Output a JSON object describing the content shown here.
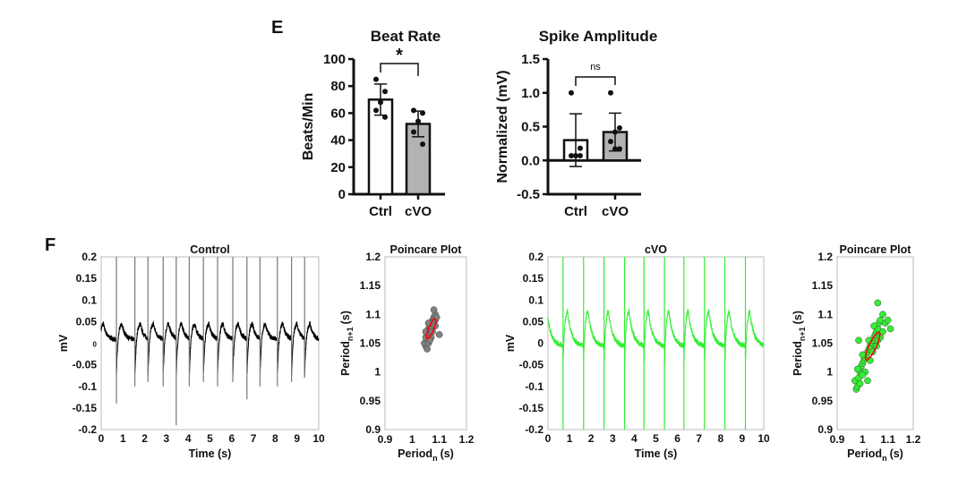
{
  "panels": {
    "e": "E",
    "f": "F"
  },
  "chart_data": [
    {
      "type": "bar",
      "title": "Beat Rate",
      "ylabel": "Beats/Min",
      "categories": [
        "Ctrl",
        "cVO"
      ],
      "values": [
        70,
        52
      ],
      "error_sd": [
        11.5,
        9.5
      ],
      "points": [
        [
          85,
          76,
          68,
          62,
          57
        ],
        [
          62,
          60,
          54,
          46,
          37
        ]
      ],
      "ylim": [
        0,
        100
      ],
      "yticks": [
        "0",
        "20",
        "40",
        "60",
        "80",
        "100"
      ],
      "yticks_values": [
        0,
        20,
        40,
        60,
        80,
        100
      ],
      "significance": "*",
      "bar_colors": [
        "#ffffff",
        "#b3b3b3"
      ]
    },
    {
      "type": "bar",
      "title": "Spike Amplitude",
      "ylabel": "Normalized (mV)",
      "categories": [
        "Ctrl",
        "cVO"
      ],
      "values": [
        0.3,
        0.42
      ],
      "error_sd": [
        0.39,
        0.28
      ],
      "points": [
        [
          1.0,
          0.18,
          0.07,
          0.07,
          0.07
        ],
        [
          1.0,
          0.48,
          0.42,
          0.28,
          0.17,
          0.17
        ]
      ],
      "ylim": [
        -0.5,
        1.5
      ],
      "yticks": [
        "-0.5",
        "0.0",
        "0.5",
        "1.0",
        "1.5"
      ],
      "yticks_values": [
        -0.5,
        0,
        0.5,
        1.0,
        1.5
      ],
      "significance": "ns",
      "bar_colors": [
        "#ffffff",
        "#b3b3b3"
      ]
    },
    {
      "type": "line",
      "title": "Control",
      "xlabel": "Time (s)",
      "ylabel": "mV",
      "xlim": [
        0,
        10
      ],
      "ylim": [
        -0.2,
        0.2
      ],
      "xticks": [
        "0",
        "1",
        "2",
        "3",
        "4",
        "5",
        "6",
        "7",
        "8",
        "9",
        "10"
      ],
      "yticks": [
        "-0.2",
        "-0.15",
        "-0.1",
        "-0.05",
        "0",
        "0.05",
        "0.1",
        "0.15",
        "0.2"
      ],
      "spike_times": [
        0.7,
        1.55,
        2.15,
        2.85,
        3.45,
        4.05,
        4.7,
        5.35,
        6.05,
        6.7,
        7.3,
        8.1,
        8.75,
        9.35
      ],
      "color": "#000000"
    },
    {
      "type": "scatter",
      "title": "Poincare Plot",
      "xlabel": "Period",
      "xlabel_sub": "n",
      "ylabel": "Period",
      "ylabel_sub": "n+1",
      "unit": "(s)",
      "xlim": [
        0.9,
        1.2
      ],
      "ylim": [
        0.9,
        1.2
      ],
      "xticks": [
        "0.9",
        "1",
        "1.1",
        "1.2"
      ],
      "yticks": [
        "0.9",
        "0.95",
        "1",
        "1.05",
        "1.1",
        "1.15",
        "1.2"
      ],
      "points": [
        [
          1.05,
          1.045
        ],
        [
          1.05,
          1.05
        ],
        [
          1.055,
          1.055
        ],
        [
          1.06,
          1.06
        ],
        [
          1.045,
          1.05
        ],
        [
          1.06,
          1.065
        ],
        [
          1.065,
          1.07
        ],
        [
          1.07,
          1.075
        ],
        [
          1.075,
          1.08
        ],
        [
          1.08,
          1.085
        ],
        [
          1.075,
          1.09
        ],
        [
          1.08,
          1.095
        ],
        [
          1.085,
          1.1
        ],
        [
          1.08,
          1.108
        ],
        [
          1.06,
          1.075
        ],
        [
          1.055,
          1.065
        ],
        [
          1.05,
          1.06
        ],
        [
          1.065,
          1.08
        ],
        [
          1.07,
          1.085
        ],
        [
          1.085,
          1.09
        ],
        [
          1.1,
          1.065
        ],
        [
          1.055,
          1.04
        ],
        [
          1.06,
          1.05
        ],
        [
          1.07,
          1.06
        ],
        [
          1.065,
          1.055
        ],
        [
          1.075,
          1.07
        ],
        [
          1.085,
          1.08
        ],
        [
          1.09,
          1.095
        ],
        [
          1.05,
          1.07
        ],
        [
          1.06,
          1.085
        ]
      ],
      "ellipse": {
        "center": [
          1.07,
          1.075
        ],
        "color": "#ff0000"
      },
      "color": "#808080"
    },
    {
      "type": "line",
      "title": "cVO",
      "xlabel": "Time (s)",
      "ylabel": "mV",
      "xlim": [
        0,
        10
      ],
      "ylim": [
        -0.2,
        0.2
      ],
      "xticks": [
        "0",
        "1",
        "2",
        "3",
        "4",
        "5",
        "6",
        "7",
        "8",
        "9",
        "10"
      ],
      "yticks": [
        "-0.2",
        "-0.15",
        "-0.1",
        "-0.05",
        "0",
        "0.05",
        "0.1",
        "0.15",
        "0.2"
      ],
      "spike_times": [
        0.7,
        1.65,
        2.6,
        3.55,
        4.45,
        5.4,
        6.3,
        7.25,
        8.2,
        9.15
      ],
      "color": "#33ee33"
    },
    {
      "type": "scatter",
      "title": "Poincare Plot",
      "xlabel": "Period",
      "xlabel_sub": "n",
      "ylabel": "Period",
      "ylabel_sub": "n+1",
      "unit": "(s)",
      "xlim": [
        0.9,
        1.2
      ],
      "ylim": [
        0.9,
        1.2
      ],
      "xticks": [
        "0.9",
        "1",
        "1.1",
        "1.2"
      ],
      "yticks": [
        "0.9",
        "0.95",
        "1",
        "1.05",
        "1.1",
        "1.15",
        "1.2"
      ],
      "points": [
        [
          0.97,
          0.985
        ],
        [
          0.975,
          0.97
        ],
        [
          0.98,
          0.975
        ],
        [
          0.985,
          0.99
        ],
        [
          0.99,
          1.0
        ],
        [
          0.995,
          1.01
        ],
        [
          1.0,
          1.015
        ],
        [
          1.005,
          1.02
        ],
        [
          1.01,
          1.025
        ],
        [
          1.015,
          1.03
        ],
        [
          1.02,
          1.035
        ],
        [
          1.025,
          1.04
        ],
        [
          1.03,
          1.045
        ],
        [
          1.035,
          1.05
        ],
        [
          1.04,
          1.055
        ],
        [
          1.045,
          1.06
        ],
        [
          1.05,
          1.065
        ],
        [
          1.055,
          1.07
        ],
        [
          1.06,
          1.075
        ],
        [
          1.065,
          1.085
        ],
        [
          1.07,
          1.09
        ],
        [
          1.08,
          1.1
        ],
        [
          1.06,
          1.12
        ],
        [
          1.09,
          1.085
        ],
        [
          1.1,
          1.09
        ],
        [
          1.11,
          1.075
        ],
        [
          0.985,
          1.055
        ],
        [
          1.02,
          0.985
        ],
        [
          1.0,
          1.03
        ],
        [
          1.03,
          1.02
        ],
        [
          1.04,
          1.035
        ],
        [
          1.05,
          1.045
        ],
        [
          0.98,
          1.005
        ],
        [
          1.01,
          1.0
        ],
        [
          1.06,
          1.055
        ],
        [
          1.08,
          1.07
        ],
        [
          1.07,
          1.06
        ],
        [
          0.99,
          0.98
        ],
        [
          1.0,
          0.995
        ],
        [
          1.025,
          1.055
        ],
        [
          1.045,
          1.08
        ],
        [
          1.055,
          1.045
        ]
      ],
      "ellipse": {
        "center": [
          1.04,
          1.045
        ],
        "color": "#ff0000"
      },
      "color": "#33ee33"
    }
  ]
}
